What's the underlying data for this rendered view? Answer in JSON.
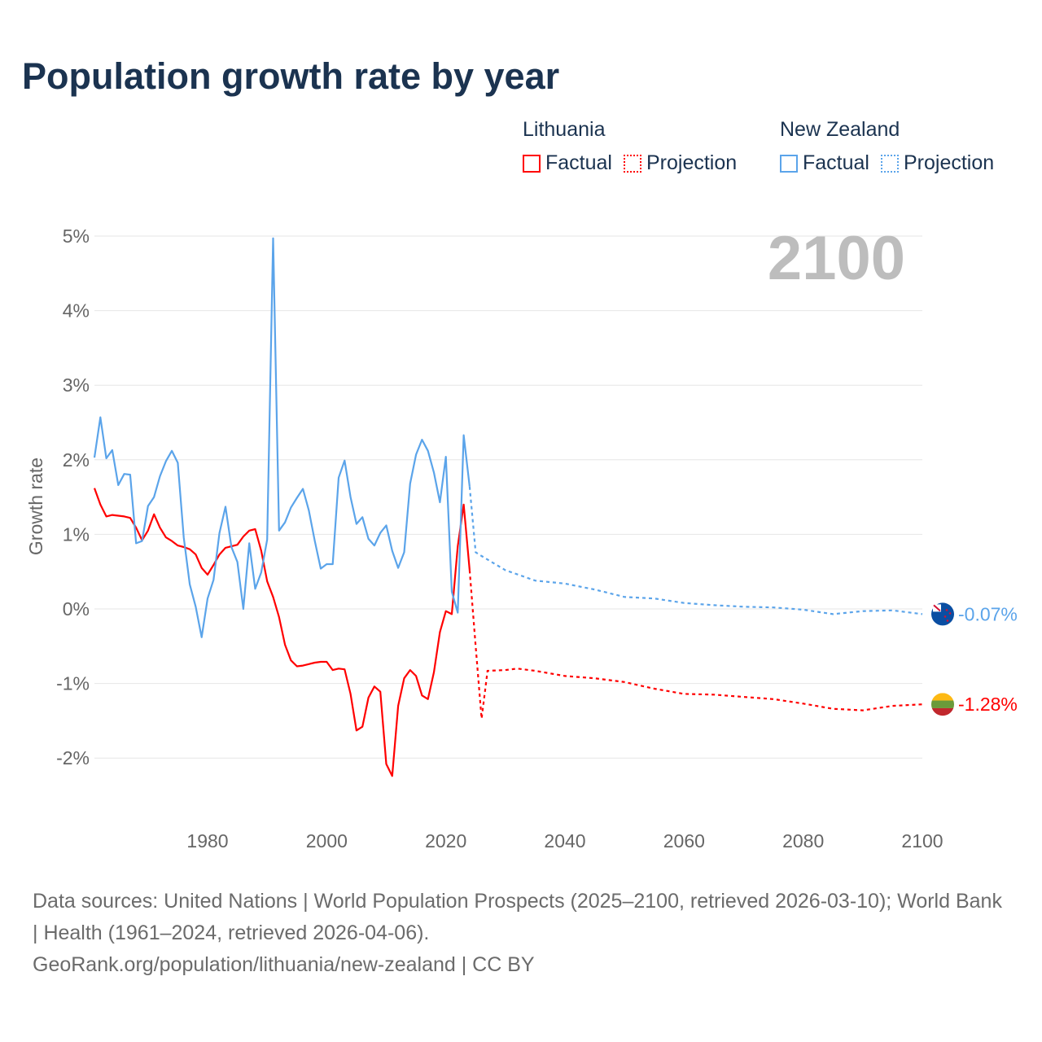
{
  "title": "Population growth rate by year",
  "legend": [
    {
      "country": "Lithuania",
      "factual": "Factual",
      "projection": "Projection",
      "color": "#ff0000"
    },
    {
      "country": "New Zealand",
      "factual": "Factual",
      "projection": "Projection",
      "color": "#5ba4ea"
    }
  ],
  "chart_data": {
    "type": "line",
    "title": "Population growth rate by year",
    "ylabel": "Growth rate",
    "xlabel": "",
    "year_label": "2100",
    "xlim": [
      1961,
      2100
    ],
    "ylim": [
      -2.7,
      5
    ],
    "x_ticks": [
      1980,
      2000,
      2020,
      2040,
      2060,
      2080,
      2100
    ],
    "y_ticks": [
      -2,
      -1,
      0,
      1,
      2,
      3,
      4,
      5
    ],
    "y_tick_labels": [
      "-2%",
      "-1%",
      "0%",
      "1%",
      "2%",
      "3%",
      "4%",
      "5%"
    ],
    "grid": true,
    "legend_position": "top-right",
    "series": [
      {
        "name": "Lithuania",
        "color": "#ff0000",
        "end_label": "-1.28%",
        "factual": {
          "x": [
            1961,
            1962,
            1963,
            1964,
            1965,
            1966,
            1967,
            1968,
            1969,
            1970,
            1971,
            1972,
            1973,
            1974,
            1975,
            1976,
            1977,
            1978,
            1979,
            1980,
            1981,
            1982,
            1983,
            1984,
            1985,
            1986,
            1987,
            1988,
            1989,
            1990,
            1991,
            1992,
            1993,
            1994,
            1995,
            1996,
            1997,
            1998,
            1999,
            2000,
            2001,
            2002,
            2003,
            2004,
            2005,
            2006,
            2007,
            2008,
            2009,
            2010,
            2011,
            2012,
            2013,
            2014,
            2015,
            2016,
            2017,
            2018,
            2019,
            2020,
            2021,
            2022,
            2023,
            2024
          ],
          "y": [
            1.62,
            1.4,
            1.24,
            1.26,
            1.25,
            1.24,
            1.22,
            1.09,
            0.92,
            1.05,
            1.27,
            1.09,
            0.96,
            0.91,
            0.85,
            0.83,
            0.8,
            0.73,
            0.55,
            0.46,
            0.59,
            0.73,
            0.82,
            0.84,
            0.86,
            0.97,
            1.05,
            1.07,
            0.78,
            0.37,
            0.16,
            -0.11,
            -0.48,
            -0.69,
            -0.77,
            -0.76,
            -0.74,
            -0.72,
            -0.71,
            -0.71,
            -0.82,
            -0.8,
            -0.81,
            -1.14,
            -1.63,
            -1.58,
            -1.19,
            -1.04,
            -1.11,
            -2.08,
            -2.24,
            -1.3,
            -0.93,
            -0.82,
            -0.9,
            -1.16,
            -1.21,
            -0.85,
            -0.31,
            -0.03,
            -0.07,
            0.84,
            1.4,
            0.52
          ]
        },
        "projection": {
          "x": [
            2024,
            2025,
            2026,
            2027,
            2030,
            2032,
            2035,
            2040,
            2045,
            2050,
            2055,
            2060,
            2065,
            2070,
            2075,
            2080,
            2085,
            2090,
            2095,
            2100
          ],
          "y": [
            0.52,
            -0.5,
            -1.47,
            -0.83,
            -0.82,
            -0.8,
            -0.83,
            -0.9,
            -0.93,
            -0.98,
            -1.07,
            -1.14,
            -1.15,
            -1.18,
            -1.21,
            -1.27,
            -1.34,
            -1.36,
            -1.3,
            -1.28
          ]
        }
      },
      {
        "name": "New Zealand",
        "color": "#5ba4ea",
        "end_label": "-0.07%",
        "factual": {
          "x": [
            1961,
            1962,
            1963,
            1964,
            1965,
            1966,
            1967,
            1968,
            1969,
            1970,
            1971,
            1972,
            1973,
            1974,
            1975,
            1976,
            1977,
            1978,
            1979,
            1980,
            1981,
            1982,
            1983,
            1984,
            1985,
            1986,
            1987,
            1988,
            1989,
            1990,
            1991,
            1992,
            1993,
            1994,
            1995,
            1996,
            1997,
            1998,
            1999,
            2000,
            2001,
            2002,
            2003,
            2004,
            2005,
            2006,
            2007,
            2008,
            2009,
            2010,
            2011,
            2012,
            2013,
            2014,
            2015,
            2016,
            2017,
            2018,
            2019,
            2020,
            2021,
            2022,
            2023,
            2024
          ],
          "y": [
            2.03,
            2.57,
            2.02,
            2.13,
            1.66,
            1.81,
            1.8,
            0.88,
            0.91,
            1.38,
            1.5,
            1.78,
            1.98,
            2.12,
            1.96,
            0.96,
            0.33,
            0.03,
            -0.38,
            0.14,
            0.39,
            1.02,
            1.37,
            0.83,
            0.63,
            0.0,
            0.88,
            0.27,
            0.49,
            0.93,
            4.97,
            1.05,
            1.16,
            1.36,
            1.49,
            1.61,
            1.32,
            0.91,
            0.54,
            0.6,
            0.6,
            1.76,
            1.99,
            1.5,
            1.14,
            1.23,
            0.94,
            0.85,
            1.02,
            1.12,
            0.78,
            0.55,
            0.76,
            1.68,
            2.07,
            2.27,
            2.12,
            1.83,
            1.43,
            2.04,
            0.23,
            -0.05,
            2.33,
            1.64
          ]
        },
        "projection": {
          "x": [
            2024,
            2025,
            2026,
            2030,
            2035,
            2040,
            2045,
            2050,
            2055,
            2060,
            2065,
            2070,
            2075,
            2080,
            2085,
            2090,
            2095,
            2100
          ],
          "y": [
            1.64,
            0.76,
            0.71,
            0.52,
            0.38,
            0.34,
            0.26,
            0.16,
            0.14,
            0.08,
            0.05,
            0.03,
            0.02,
            -0.01,
            -0.07,
            -0.03,
            -0.02,
            -0.07
          ]
        }
      }
    ]
  },
  "footer": {
    "sources": "Data sources: United Nations | World Population Prospects (2025–2100, retrieved 2026-03-10); World Bank | Health (1961–2024, retrieved 2026-04-06).",
    "credit": "GeoRank.org/population/lithuania/new-zealand | CC BY"
  }
}
